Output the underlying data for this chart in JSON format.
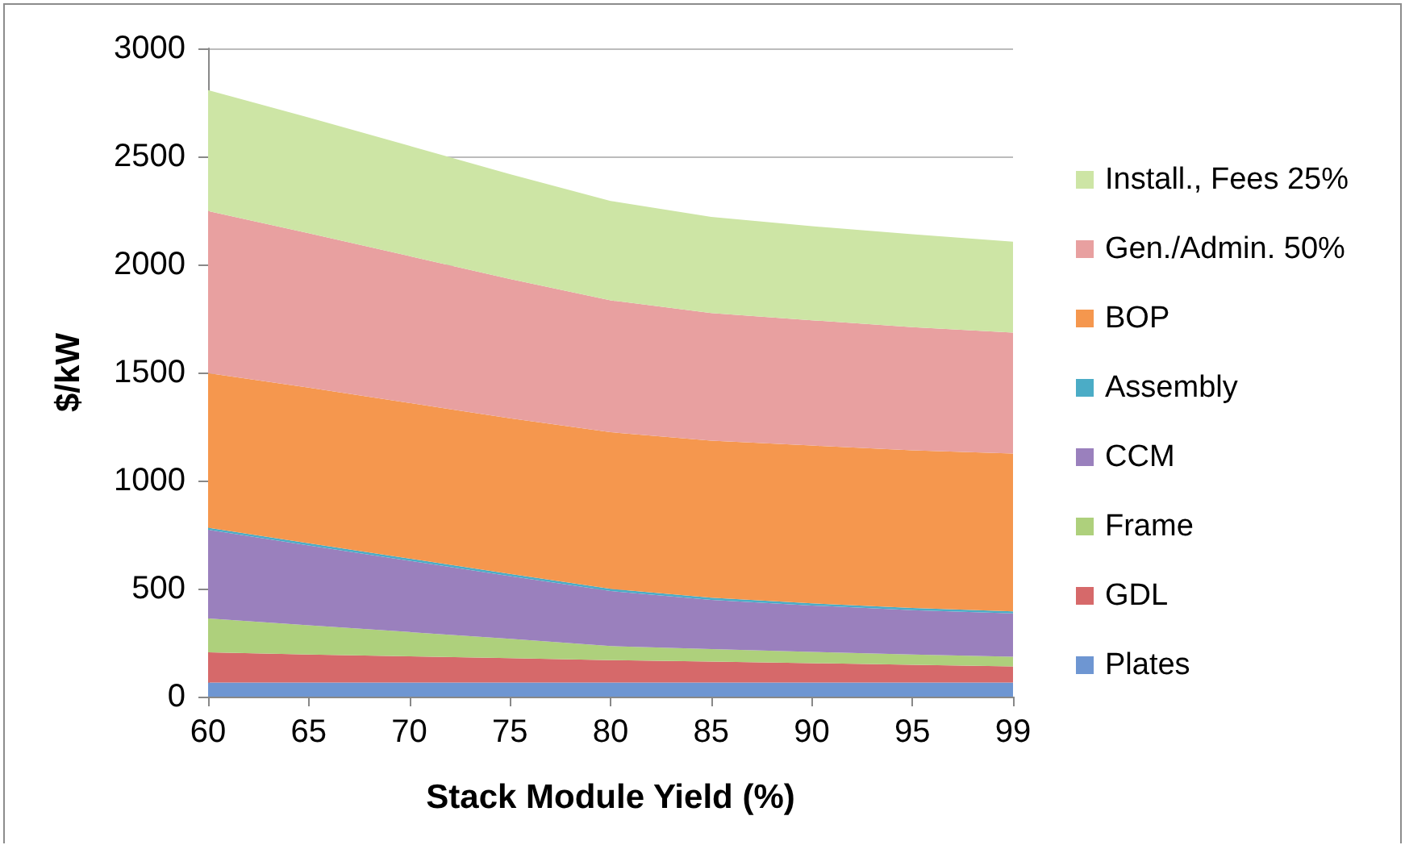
{
  "chart_data": {
    "type": "area",
    "stacked": true,
    "xlabel": "Stack Module Yield (%)",
    "ylabel": "$/kW",
    "categories": [
      "60",
      "65",
      "70",
      "75",
      "80",
      "85",
      "90",
      "95",
      "99"
    ],
    "series": [
      {
        "name": "Plates",
        "color": "#6e96d2",
        "values": [
          65,
          65,
          65,
          65,
          65,
          65,
          65,
          65,
          65
        ]
      },
      {
        "name": "GDL",
        "color": "#d6696a",
        "values": [
          140,
          130,
          122,
          113,
          104,
          97,
          90,
          82,
          75
        ]
      },
      {
        "name": "Frame",
        "color": "#aed07c",
        "values": [
          157,
          135,
          112,
          90,
          65,
          58,
          52,
          48,
          45
        ]
      },
      {
        "name": "CCM",
        "color": "#9a80bd",
        "values": [
          410,
          370,
          330,
          290,
          255,
          228,
          215,
          205,
          200
        ]
      },
      {
        "name": "Assembly",
        "color": "#4bacc6",
        "values": [
          10,
          10,
          10,
          10,
          10,
          10,
          10,
          10,
          10
        ]
      },
      {
        "name": "BOP",
        "color": "#f5974e",
        "values": [
          715,
          720,
          720,
          720,
          725,
          727,
          730,
          730,
          730
        ]
      },
      {
        "name": "Gen./Admin. 50%",
        "color": "#e8a0a0",
        "values": [
          750,
          715,
          680,
          645,
          610,
          590,
          580,
          570,
          560
        ]
      },
      {
        "name": "Install., Fees 25%",
        "color": "#cde5a5",
        "values": [
          560,
          535,
          510,
          485,
          460,
          445,
          435,
          430,
          420
        ]
      }
    ],
    "ylim": [
      0,
      3000
    ],
    "yticks": [
      0,
      500,
      1000,
      1500,
      2000,
      2500,
      3000
    ],
    "grid": "y",
    "legend": "right",
    "marker": "none"
  }
}
